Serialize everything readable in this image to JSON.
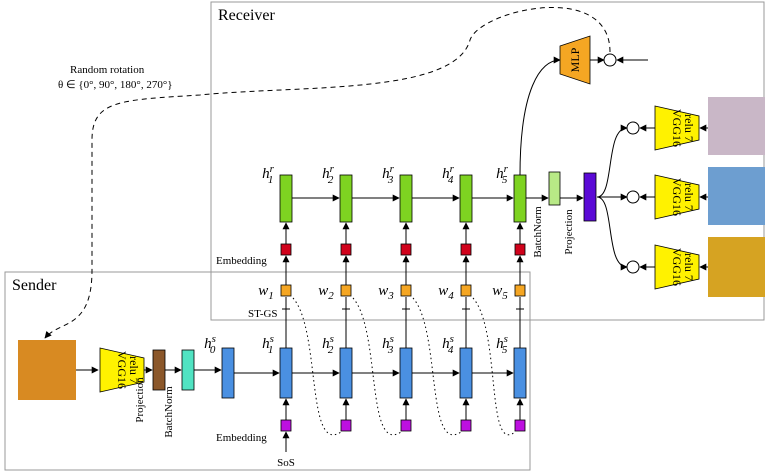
{
  "rotation": {
    "title": "Random rotation",
    "formula": "θ ∈ {0°, 90°, 180°, 270°}"
  },
  "receiver": {
    "title": "Receiver",
    "hidden": [
      {
        "base": "h",
        "sub": "1",
        "sup": "r"
      },
      {
        "base": "h",
        "sub": "2",
        "sup": "r"
      },
      {
        "base": "h",
        "sub": "3",
        "sup": "r"
      },
      {
        "base": "h",
        "sub": "4",
        "sup": "r"
      },
      {
        "base": "h",
        "sub": "5",
        "sup": "r"
      }
    ],
    "embedding": "Embedding",
    "batchnorm": "BatchNorm",
    "projection": "Projection",
    "mlp": "MLP",
    "vgg": [
      {
        "line1": "VGG16",
        "line2": "relu 7"
      },
      {
        "line1": "VGG16",
        "line2": "relu 7"
      },
      {
        "line1": "VGG16",
        "line2": "relu 7"
      }
    ]
  },
  "symbols": [
    {
      "base": "w",
      "sub": "1"
    },
    {
      "base": "w",
      "sub": "2"
    },
    {
      "base": "w",
      "sub": "3"
    },
    {
      "base": "w",
      "sub": "4"
    },
    {
      "base": "w",
      "sub": "5"
    }
  ],
  "st_gs": "ST-GS",
  "sender": {
    "title": "Sender",
    "hidden": [
      {
        "base": "h",
        "sub": "0",
        "sup": "s"
      },
      {
        "base": "h",
        "sub": "1",
        "sup": "s"
      },
      {
        "base": "h",
        "sub": "2",
        "sup": "s"
      },
      {
        "base": "h",
        "sub": "3",
        "sup": "s"
      },
      {
        "base": "h",
        "sub": "4",
        "sup": "s"
      },
      {
        "base": "h",
        "sub": "5",
        "sup": "s"
      }
    ],
    "embedding": "Embedding",
    "batchnorm": "BatchNorm",
    "projection": "Projection",
    "sos": "SoS",
    "vgg": {
      "line1": "VGG16",
      "line2": "relu 7"
    }
  }
}
